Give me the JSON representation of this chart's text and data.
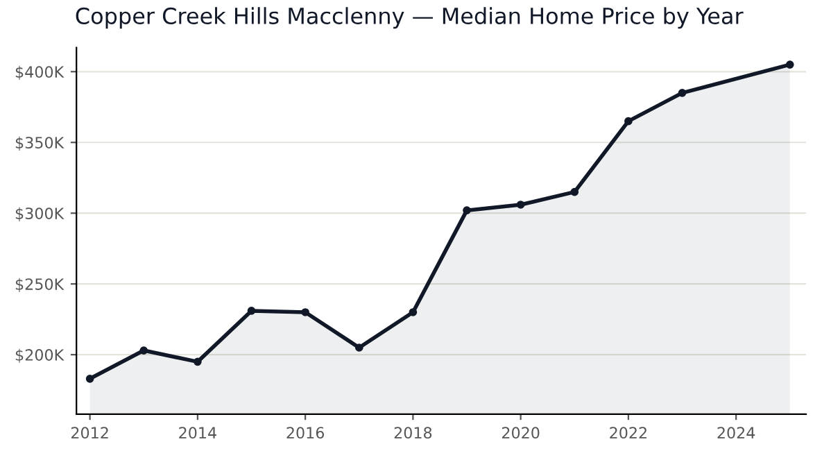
{
  "chart_data": {
    "type": "area",
    "title": "Copper Creek Hills Macclenny — Median Home Price by Year",
    "x": [
      2012,
      2013,
      2014,
      2015,
      2016,
      2017,
      2018,
      2019,
      2020,
      2021,
      2022,
      2023,
      2025
    ],
    "series": [
      {
        "color": "#111827",
        "values": [
          183,
          203,
          195,
          231,
          230,
          205,
          230,
          302,
          306,
          315,
          365,
          385,
          405
        ]
      }
    ],
    "xlim": [
      2011.75,
      2025.3
    ],
    "xticks": [
      2012,
      2014,
      2016,
      2018,
      2020,
      2022,
      2024
    ],
    "ylim": [
      158,
      417
    ],
    "yticks": [
      {
        "value": 200,
        "label": "$200K"
      },
      {
        "value": 250,
        "label": "$250K"
      },
      {
        "value": 300,
        "label": "$300K"
      },
      {
        "value": 350,
        "label": "$350K"
      },
      {
        "value": 400,
        "label": "$400K"
      }
    ],
    "grid": "y",
    "marker": "circle",
    "line_style": "solid"
  }
}
